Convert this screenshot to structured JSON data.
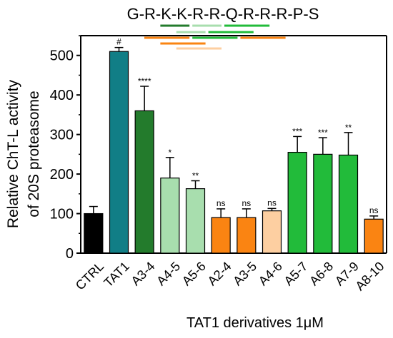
{
  "chart_data": {
    "type": "bar",
    "title": "G-R-K-K-R-R-Q-R-R-R-P-S",
    "xlabel": "TAT1 derivatives 1μM",
    "ylabel_line1": "Relative ChT-L activity",
    "ylabel_line2": "of 20S proteasome",
    "ylim": [
      0,
      550
    ],
    "yticks": [
      "0",
      "100",
      "200",
      "300",
      "400",
      "500"
    ],
    "ytick_values": [
      0,
      100,
      200,
      300,
      400,
      500
    ],
    "grid": false,
    "categories": [
      "CTRL",
      "TAT1",
      "A3-4",
      "A4-5",
      "A5-6",
      "A2-4",
      "A3-5",
      "A4-6",
      "A5-7",
      "A6-8",
      "A7-9",
      "A8-10"
    ],
    "values": [
      100,
      510,
      360,
      190,
      163,
      90,
      90,
      107,
      255,
      250,
      248,
      86
    ],
    "errors": [
      18,
      10,
      62,
      52,
      20,
      22,
      22,
      6,
      40,
      42,
      57,
      8
    ],
    "significance": [
      "",
      "#",
      "****",
      "*",
      "**",
      "ns",
      "ns",
      "ns",
      "***",
      "***",
      "**",
      "ns"
    ],
    "colors": [
      "#000000",
      "#117E86",
      "#237B2C",
      "#A8DEAE",
      "#A8DEAE",
      "#FA8412",
      "#FA8412",
      "#FDCFA1",
      "#22BB3A",
      "#22BB3A",
      "#22BB3A",
      "#FA8412"
    ],
    "fragment_lines": [
      {
        "from": 2,
        "to": 3,
        "color": "#237B2C"
      },
      {
        "from": 3,
        "to": 4,
        "color": "#A8DEAE"
      },
      {
        "from": 4,
        "to": 5,
        "color": "#A8DEAE"
      },
      {
        "from": 1,
        "to": 3,
        "color": "#FA8412"
      },
      {
        "from": 2,
        "to": 4,
        "color": "#FA8412"
      },
      {
        "from": 3,
        "to": 5,
        "color": "#FDCFA1"
      },
      {
        "from": 4,
        "to": 6,
        "color": "#22BB3A"
      },
      {
        "from": 5,
        "to": 7,
        "color": "#22BB3A"
      },
      {
        "from": 6,
        "to": 8,
        "color": "#22BB3A"
      },
      {
        "from": 7,
        "to": 9,
        "color": "#FA8412"
      }
    ]
  }
}
